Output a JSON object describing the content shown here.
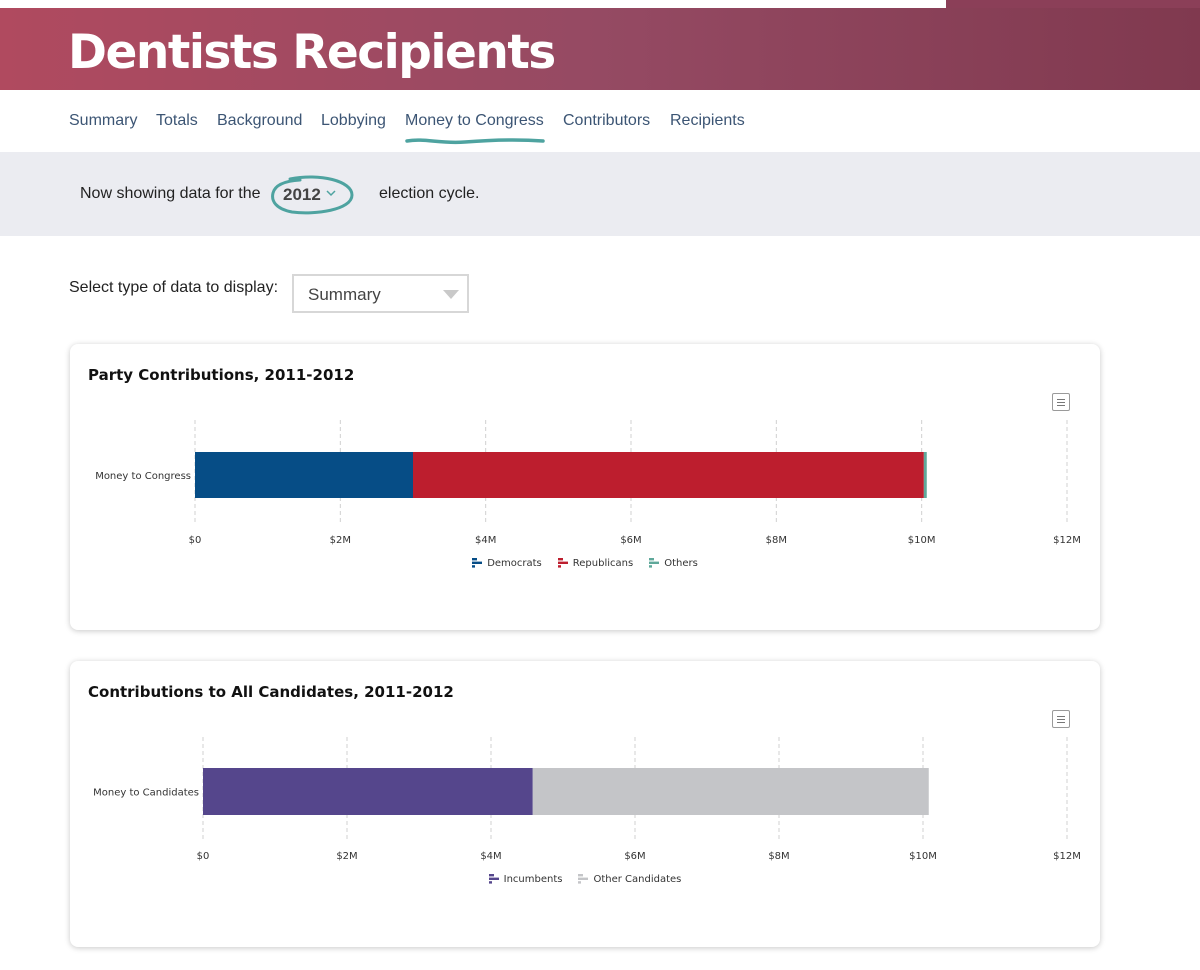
{
  "page": {
    "title": "Dentists Recipients"
  },
  "colors": {
    "banner": "#954a63",
    "democrats": "#064d86",
    "republicans": "#bd1e2e",
    "others": "#5fa89a",
    "incumbents": "#55468c",
    "other_candidates": "#c4c5c8",
    "tab_text": "#3c5574",
    "underline": "#4ea3a0"
  },
  "nav": {
    "tabs": [
      {
        "label": "Summary"
      },
      {
        "label": "Totals"
      },
      {
        "label": "Background"
      },
      {
        "label": "Lobbying"
      },
      {
        "label": "Money to Congress",
        "active": true
      },
      {
        "label": "Contributors"
      },
      {
        "label": "Recipients"
      }
    ]
  },
  "cycle": {
    "prefix": "Now showing data for the",
    "year": "2012",
    "suffix": "election cycle."
  },
  "data_type": {
    "label": "Select type of data to display:",
    "selected": "Summary"
  },
  "chart_data": [
    {
      "type": "bar",
      "orientation": "horizontal",
      "stacked": true,
      "title": "Party Contributions, 2011-2012",
      "categories": [
        "Money to Congress"
      ],
      "series": [
        {
          "name": "Democrats",
          "values": [
            3000000
          ],
          "color": "#064d86"
        },
        {
          "name": "Republicans",
          "values": [
            7030000
          ],
          "color": "#bd1e2e"
        },
        {
          "name": "Others",
          "values": [
            40000
          ],
          "color": "#5fa89a"
        }
      ],
      "xlim": [
        0,
        12000000
      ],
      "ticks": [
        {
          "value": 0,
          "label": "$0"
        },
        {
          "value": 2000000,
          "label": "$2M"
        },
        {
          "value": 4000000,
          "label": "$4M"
        },
        {
          "value": 6000000,
          "label": "$6M"
        },
        {
          "value": 8000000,
          "label": "$8M"
        },
        {
          "value": 10000000,
          "label": "$10M"
        },
        {
          "value": 12000000,
          "label": "$12M"
        }
      ],
      "grid": true,
      "legend": "bottom-center"
    },
    {
      "type": "bar",
      "orientation": "horizontal",
      "stacked": true,
      "title": "Contributions to All Candidates, 2011-2012",
      "categories": [
        "Money to Candidates"
      ],
      "series": [
        {
          "name": "Incumbents",
          "values": [
            4580000
          ],
          "color": "#55468c"
        },
        {
          "name": "Other Candidates",
          "values": [
            5500000
          ],
          "color": "#c4c5c8"
        }
      ],
      "xlim": [
        0,
        12000000
      ],
      "ticks": [
        {
          "value": 0,
          "label": "$0"
        },
        {
          "value": 2000000,
          "label": "$2M"
        },
        {
          "value": 4000000,
          "label": "$4M"
        },
        {
          "value": 6000000,
          "label": "$6M"
        },
        {
          "value": 8000000,
          "label": "$8M"
        },
        {
          "value": 10000000,
          "label": "$10M"
        },
        {
          "value": 12000000,
          "label": "$12M"
        }
      ],
      "grid": true,
      "legend": "bottom-center"
    }
  ]
}
